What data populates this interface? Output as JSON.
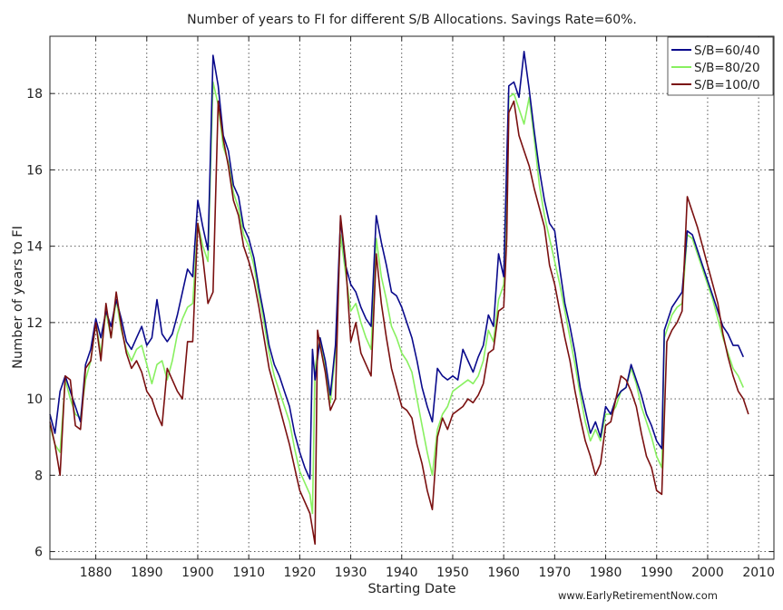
{
  "credit": "www.EarlyRetirementNow.com",
  "chart_data": {
    "type": "line",
    "title": "Number of years to FI for different S/B Allocations. Savings Rate=60%.",
    "xlabel": "Starting Date",
    "ylabel": "Number of years to FI",
    "xlim": [
      1871,
      2013
    ],
    "ylim": [
      5.8,
      19.5
    ],
    "xticks": [
      1880,
      1890,
      1900,
      1910,
      1920,
      1930,
      1940,
      1950,
      1960,
      1970,
      1980,
      1990,
      2000,
      2010
    ],
    "yticks": [
      6,
      8,
      10,
      12,
      14,
      16,
      18
    ],
    "grid": true,
    "legend_position": "top-right",
    "series": [
      {
        "name": "S/B=60/40",
        "color": "#0a0a8c",
        "x": [
          1871,
          1872,
          1873,
          1874,
          1875,
          1876,
          1877,
          1878,
          1879,
          1880,
          1881,
          1882,
          1883,
          1884,
          1885,
          1886,
          1887,
          1888,
          1889,
          1890,
          1891,
          1892,
          1893,
          1894,
          1895,
          1896,
          1897,
          1898,
          1899,
          1900,
          1901,
          1902,
          1903,
          1904,
          1905,
          1906,
          1907,
          1908,
          1909,
          1910,
          1911,
          1912,
          1913,
          1914,
          1915,
          1916,
          1917,
          1918,
          1919,
          1920,
          1921,
          1922,
          1922.5,
          1923,
          1924,
          1925,
          1926,
          1927,
          1928,
          1929,
          1930,
          1931,
          1932,
          1933,
          1934,
          1935,
          1936,
          1937,
          1938,
          1939,
          1940,
          1941,
          1942,
          1943,
          1944,
          1945,
          1946,
          1947,
          1948,
          1949,
          1950,
          1951,
          1952,
          1953,
          1954,
          1955,
          1956,
          1957,
          1958,
          1959,
          1960,
          1960.6,
          1961,
          1962,
          1963,
          1964,
          1965,
          1966,
          1967,
          1968,
          1969,
          1970,
          1971,
          1972,
          1973,
          1974,
          1975,
          1976,
          1977,
          1978,
          1979,
          1980,
          1981,
          1982,
          1983,
          1984,
          1985,
          1986,
          1987,
          1988,
          1989,
          1990,
          1991,
          1991.5,
          1992,
          1993,
          1994,
          1995,
          1996,
          1997,
          1998,
          1999,
          2000,
          2001,
          2002,
          2003,
          2004,
          2005,
          2006,
          2007
        ],
        "values": [
          9.6,
          9.1,
          10.2,
          10.6,
          10.2,
          9.8,
          9.4,
          10.9,
          11.3,
          12.1,
          11.6,
          12.3,
          11.9,
          12.6,
          12.1,
          11.5,
          11.3,
          11.6,
          11.9,
          11.4,
          11.6,
          12.6,
          11.7,
          11.5,
          11.7,
          12.2,
          12.8,
          13.4,
          13.2,
          15.2,
          14.5,
          13.9,
          19.0,
          18.2,
          16.9,
          16.5,
          15.6,
          15.3,
          14.5,
          14.2,
          13.7,
          12.9,
          12.2,
          11.4,
          10.9,
          10.6,
          10.2,
          9.8,
          9.1,
          8.6,
          8.2,
          7.9,
          11.3,
          10.5,
          11.6,
          11.0,
          10.1,
          11.4,
          14.7,
          13.5,
          13.0,
          12.8,
          12.4,
          12.1,
          11.9,
          14.8,
          14.1,
          13.5,
          12.8,
          12.7,
          12.4,
          12.0,
          11.6,
          11.0,
          10.3,
          9.8,
          9.4,
          10.8,
          10.6,
          10.5,
          10.6,
          10.5,
          11.3,
          11.0,
          10.7,
          11.1,
          11.4,
          12.2,
          11.9,
          13.8,
          13.2,
          16.2,
          18.2,
          18.3,
          17.9,
          19.1,
          18.1,
          17.0,
          16.0,
          15.2,
          14.6,
          14.4,
          13.4,
          12.5,
          11.9,
          11.2,
          10.3,
          9.7,
          9.1,
          9.4,
          9.0,
          9.8,
          9.6,
          10.0,
          10.2,
          10.3,
          10.9,
          10.5,
          10.1,
          9.6,
          9.3,
          8.9,
          8.7,
          11.8,
          12.0,
          12.4,
          12.6,
          12.8,
          14.4,
          14.3,
          13.9,
          13.5,
          13.1,
          12.7,
          12.3,
          11.9,
          11.7,
          11.4,
          11.4,
          11.1
        ]
      },
      {
        "name": "S/B=80/20",
        "color": "#88f060",
        "x": [
          1871,
          1872,
          1873,
          1874,
          1875,
          1876,
          1877,
          1878,
          1879,
          1880,
          1881,
          1882,
          1883,
          1884,
          1885,
          1886,
          1887,
          1888,
          1889,
          1890,
          1891,
          1892,
          1893,
          1894,
          1895,
          1896,
          1897,
          1898,
          1899,
          1900,
          1901,
          1902,
          1903,
          1904,
          1905,
          1906,
          1907,
          1908,
          1909,
          1910,
          1911,
          1912,
          1913,
          1914,
          1915,
          1916,
          1917,
          1918,
          1919,
          1920,
          1921,
          1922,
          1922.5,
          1923,
          1924,
          1925,
          1926,
          1927,
          1928,
          1929,
          1930,
          1931,
          1932,
          1933,
          1934,
          1935,
          1936,
          1937,
          1938,
          1939,
          1940,
          1941,
          1942,
          1943,
          1944,
          1945,
          1946,
          1947,
          1948,
          1949,
          1950,
          1951,
          1952,
          1953,
          1954,
          1955,
          1956,
          1957,
          1958,
          1959,
          1960,
          1960.6,
          1961,
          1962,
          1963,
          1964,
          1965,
          1966,
          1967,
          1968,
          1969,
          1970,
          1971,
          1972,
          1973,
          1974,
          1975,
          1976,
          1977,
          1978,
          1979,
          1980,
          1981,
          1982,
          1983,
          1984,
          1985,
          1986,
          1987,
          1988,
          1989,
          1990,
          1991,
          1991.5,
          1992,
          1993,
          1994,
          1995,
          1996,
          1997,
          1998,
          1999,
          2000,
          2001,
          2002,
          2003,
          2004,
          2005,
          2006,
          2007
        ],
        "values": [
          9.3,
          8.8,
          8.6,
          10.5,
          10.0,
          9.6,
          9.5,
          10.5,
          11.0,
          12.0,
          11.2,
          12.3,
          11.6,
          12.6,
          11.8,
          11.3,
          11.0,
          11.3,
          11.4,
          10.9,
          10.4,
          10.9,
          11.0,
          10.5,
          11.0,
          11.7,
          12.1,
          12.4,
          12.5,
          14.6,
          14.0,
          13.6,
          18.3,
          17.7,
          16.6,
          16.2,
          15.4,
          15.0,
          14.3,
          14.0,
          13.5,
          12.7,
          12.0,
          11.2,
          10.6,
          10.2,
          9.8,
          9.4,
          8.7,
          8.1,
          7.8,
          7.5,
          7.0,
          10.8,
          11.6,
          10.8,
          9.9,
          11.2,
          14.3,
          13.3,
          12.3,
          12.5,
          12.0,
          11.6,
          11.3,
          14.2,
          13.2,
          12.6,
          11.9,
          11.6,
          11.2,
          11.0,
          10.7,
          10.0,
          9.3,
          8.6,
          8.0,
          9.2,
          9.6,
          9.8,
          10.2,
          10.3,
          10.4,
          10.5,
          10.4,
          10.6,
          11.0,
          11.8,
          11.5,
          12.6,
          13.0,
          15.4,
          17.9,
          18.0,
          17.6,
          17.2,
          17.9,
          16.8,
          15.6,
          14.8,
          14.2,
          13.6,
          13.0,
          12.3,
          11.6,
          10.9,
          10.1,
          9.4,
          8.9,
          9.2,
          8.9,
          9.6,
          9.6,
          9.8,
          10.2,
          10.3,
          10.8,
          10.4,
          9.8,
          9.4,
          9.0,
          8.5,
          8.2,
          11.6,
          11.8,
          12.2,
          12.4,
          12.5,
          14.3,
          14.2,
          13.8,
          13.4,
          13.0,
          12.6,
          12.1,
          11.6,
          11.2,
          10.8,
          10.6,
          10.3
        ]
      },
      {
        "name": "S/B=100/0",
        "color": "#7a1010",
        "x": [
          1871,
          1872,
          1873,
          1874,
          1875,
          1876,
          1877,
          1878,
          1879,
          1880,
          1881,
          1882,
          1883,
          1884,
          1885,
          1886,
          1887,
          1888,
          1889,
          1890,
          1891,
          1892,
          1893,
          1894,
          1895,
          1896,
          1897,
          1898,
          1899,
          1900,
          1901,
          1902,
          1903,
          1904,
          1905,
          1906,
          1907,
          1908,
          1909,
          1910,
          1911,
          1912,
          1913,
          1914,
          1915,
          1916,
          1917,
          1918,
          1919,
          1920,
          1921,
          1922,
          1923,
          1923.5,
          1924,
          1925,
          1926,
          1927,
          1928,
          1929,
          1930,
          1931,
          1932,
          1933,
          1934,
          1935,
          1936,
          1937,
          1938,
          1939,
          1940,
          1941,
          1942,
          1943,
          1944,
          1945,
          1946,
          1947,
          1948,
          1949,
          1950,
          1951,
          1952,
          1953,
          1954,
          1955,
          1956,
          1957,
          1958,
          1959,
          1960,
          1960.6,
          1961,
          1962,
          1963,
          1964,
          1965,
          1966,
          1967,
          1968,
          1969,
          1970,
          1971,
          1972,
          1973,
          1974,
          1975,
          1976,
          1977,
          1978,
          1979,
          1980,
          1981,
          1982,
          1983,
          1984,
          1985,
          1986,
          1987,
          1988,
          1989,
          1990,
          1991,
          1992,
          1993,
          1994,
          1995,
          1996,
          1997,
          1998,
          1999,
          2000,
          2001,
          2002,
          2003,
          2004,
          2005,
          2006,
          2007,
          2008
        ],
        "values": [
          9.4,
          8.8,
          8.0,
          10.6,
          10.5,
          9.3,
          9.2,
          10.8,
          11.0,
          12.0,
          11.0,
          12.5,
          11.6,
          12.8,
          11.9,
          11.2,
          10.8,
          11.0,
          10.7,
          10.2,
          10.0,
          9.6,
          9.3,
          10.8,
          10.5,
          10.2,
          10.0,
          11.5,
          11.5,
          14.6,
          13.7,
          12.5,
          12.8,
          17.8,
          16.8,
          16.1,
          15.2,
          14.8,
          14.0,
          13.6,
          13.1,
          12.4,
          11.6,
          10.8,
          10.3,
          9.8,
          9.3,
          8.8,
          8.2,
          7.6,
          7.3,
          7.0,
          6.2,
          11.8,
          11.4,
          10.7,
          9.7,
          10.0,
          14.8,
          13.6,
          11.5,
          12.0,
          11.2,
          10.9,
          10.6,
          13.8,
          12.5,
          11.6,
          10.8,
          10.3,
          9.8,
          9.7,
          9.5,
          8.8,
          8.3,
          7.6,
          7.1,
          9.0,
          9.5,
          9.2,
          9.6,
          9.7,
          9.8,
          10.0,
          9.9,
          10.1,
          10.4,
          11.2,
          11.3,
          12.3,
          12.4,
          14.2,
          17.5,
          17.8,
          16.9,
          16.5,
          16.1,
          15.5,
          15.0,
          14.5,
          13.5,
          13.0,
          12.3,
          11.6,
          11.0,
          10.2,
          9.5,
          8.9,
          8.5,
          8.0,
          8.3,
          9.3,
          9.4,
          10.0,
          10.6,
          10.5,
          10.2,
          9.8,
          9.1,
          8.5,
          8.2,
          7.6,
          7.5,
          11.5,
          11.8,
          12.0,
          12.3,
          15.3,
          14.9,
          14.5,
          14.0,
          13.5,
          13.0,
          12.5,
          11.7,
          11.1,
          10.6,
          10.2,
          10.0,
          9.6
        ]
      }
    ]
  }
}
